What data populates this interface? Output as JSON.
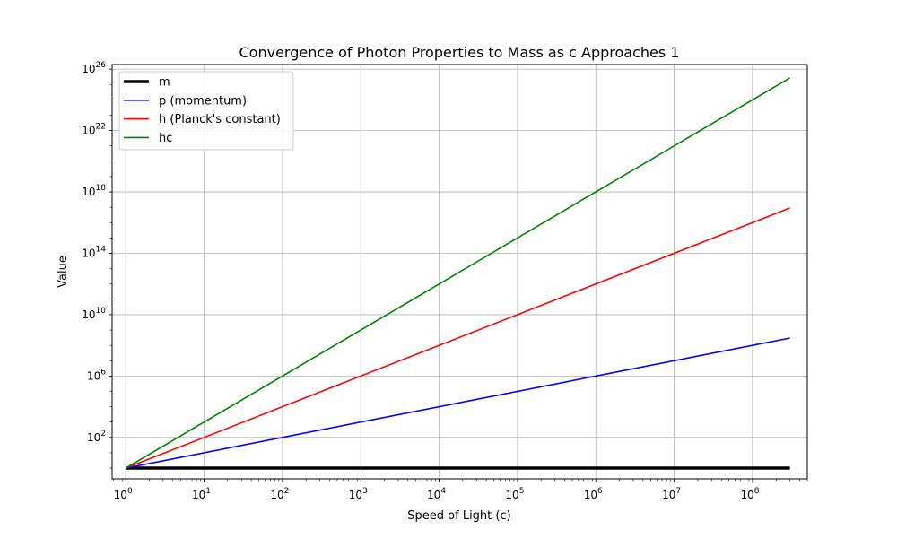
{
  "chart_data": {
    "type": "line",
    "title": "Convergence of Photon Properties to Mass as c Approaches 1",
    "xlabel": "Speed of Light (c)",
    "ylabel": "Value",
    "xscale": "log",
    "yscale": "log",
    "xlim": [
      0.67,
      500000000
    ],
    "ylim": [
      0.2,
      2e+26
    ],
    "grid": true,
    "legend_position": "upper-left",
    "x_ticks": [
      {
        "base": "10",
        "exp": "0",
        "value": 1
      },
      {
        "base": "10",
        "exp": "1",
        "value": 10
      },
      {
        "base": "10",
        "exp": "2",
        "value": 100
      },
      {
        "base": "10",
        "exp": "3",
        "value": 1000
      },
      {
        "base": "10",
        "exp": "4",
        "value": 10000
      },
      {
        "base": "10",
        "exp": "5",
        "value": 100000
      },
      {
        "base": "10",
        "exp": "6",
        "value": 1000000
      },
      {
        "base": "10",
        "exp": "7",
        "value": 10000000
      },
      {
        "base": "10",
        "exp": "8",
        "value": 100000000
      }
    ],
    "y_ticks": [
      {
        "base": "10",
        "exp": "2",
        "value": 100.0
      },
      {
        "base": "10",
        "exp": "6",
        "value": 1000000.0
      },
      {
        "base": "10",
        "exp": "10",
        "value": 10000000000.0
      },
      {
        "base": "10",
        "exp": "14",
        "value": 100000000000000.0
      },
      {
        "base": "10",
        "exp": "18",
        "value": 1e+18
      },
      {
        "base": "10",
        "exp": "22",
        "value": 1e+22
      },
      {
        "base": "10",
        "exp": "26",
        "value": 1e+26
      }
    ],
    "series": [
      {
        "name": "m",
        "color": "#000000",
        "x": [
          1,
          300000000
        ],
        "y": [
          1,
          1
        ]
      },
      {
        "name": "p (momentum)",
        "color": "#0000ff",
        "x": [
          1,
          300000000
        ],
        "y": [
          1,
          300000000
        ]
      },
      {
        "name": "h (Planck's constant)",
        "color": "#ff0000",
        "x": [
          1,
          300000000
        ],
        "y": [
          1,
          9e+16
        ]
      },
      {
        "name": "hc",
        "color": "#008000",
        "x": [
          1,
          300000000
        ],
        "y": [
          1,
          2.7e+25
        ]
      }
    ]
  }
}
